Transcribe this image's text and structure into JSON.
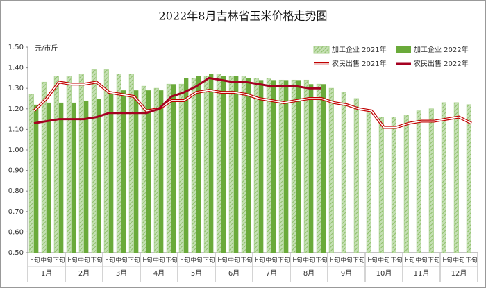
{
  "chart_data": {
    "type": "bar_line",
    "title": "2022年8月吉林省玉米价格走势图",
    "y_label": "元/市斤",
    "categories": [
      "上旬",
      "中旬",
      "下旬",
      "上旬",
      "中旬",
      "下旬",
      "上旬",
      "中旬",
      "下旬",
      "上旬",
      "中旬",
      "下旬",
      "上旬",
      "中旬",
      "下旬",
      "上旬",
      "中旬",
      "下旬",
      "上旬",
      "中旬",
      "下旬",
      "上旬",
      "中旬",
      "下旬",
      "上旬",
      "中旬",
      "下旬",
      "上旬",
      "中旬",
      "下旬",
      "上旬",
      "中旬",
      "下旬",
      "上旬",
      "中旬",
      "下旬"
    ],
    "groups": [
      "1月",
      "2月",
      "3月",
      "4月",
      "5月",
      "6月",
      "7月",
      "8月",
      "9月",
      "10月",
      "11月",
      "12月"
    ],
    "ylim": [
      0.5,
      1.5
    ],
    "yticks": [
      {
        "value": 0.5,
        "label": "0.50"
      },
      {
        "value": 0.6,
        "label": "0.60"
      },
      {
        "value": 0.7,
        "label": "0.70"
      },
      {
        "value": 0.8,
        "label": "0.80"
      },
      {
        "value": 0.9,
        "label": "0.90"
      },
      {
        "value": 1.0,
        "label": "1.00"
      },
      {
        "value": 1.1,
        "label": "1.10"
      },
      {
        "value": 1.2,
        "label": "1.20"
      },
      {
        "value": 1.3,
        "label": "1.30"
      },
      {
        "value": 1.4,
        "label": "1.40"
      },
      {
        "value": 1.5,
        "label": "1.50"
      }
    ],
    "series": [
      {
        "name": "加工企业 2021年",
        "kind": "bar",
        "hatched": true,
        "color": "#a9d18e",
        "values": [
          1.27,
          1.33,
          1.36,
          1.36,
          1.37,
          1.39,
          1.39,
          1.37,
          1.37,
          1.31,
          1.3,
          1.32,
          1.32,
          1.35,
          1.36,
          1.37,
          1.36,
          1.36,
          1.35,
          1.35,
          1.34,
          1.34,
          1.34,
          1.32,
          1.3,
          1.28,
          1.25,
          1.18,
          1.16,
          1.16,
          1.17,
          1.19,
          1.2,
          1.23,
          1.23,
          1.22
        ]
      },
      {
        "name": "加工企业 2022年",
        "kind": "bar",
        "hatched": false,
        "color": "#6aaa3a",
        "values": [
          1.22,
          1.23,
          1.23,
          1.23,
          1.24,
          1.25,
          1.28,
          1.29,
          1.29,
          1.29,
          1.29,
          1.32,
          1.35,
          1.36,
          1.37,
          1.36,
          1.36,
          1.35,
          1.34,
          1.34,
          1.34,
          1.34,
          1.32,
          1.32,
          null,
          null,
          null,
          null,
          null,
          null,
          null,
          null,
          null,
          null,
          null,
          null
        ]
      },
      {
        "name": "农民出售 2021年",
        "kind": "line",
        "double": true,
        "color": "#c00000",
        "values": [
          1.19,
          1.25,
          1.33,
          1.32,
          1.32,
          1.33,
          1.28,
          1.27,
          1.26,
          1.19,
          1.2,
          1.24,
          1.24,
          1.28,
          1.29,
          1.28,
          1.28,
          1.27,
          1.25,
          1.24,
          1.23,
          1.24,
          1.25,
          1.25,
          1.23,
          1.22,
          1.2,
          1.19,
          1.11,
          1.11,
          1.13,
          1.14,
          1.14,
          1.15,
          1.16,
          1.13
        ]
      },
      {
        "name": "农民出售 2022年",
        "kind": "line",
        "double": false,
        "color": "#a50021",
        "values": [
          1.13,
          1.14,
          1.15,
          1.15,
          1.15,
          1.16,
          1.18,
          1.18,
          1.18,
          1.18,
          1.2,
          1.26,
          1.28,
          1.31,
          1.35,
          1.34,
          1.33,
          1.33,
          1.32,
          1.31,
          1.31,
          1.31,
          1.3,
          1.3,
          null,
          null,
          null,
          null,
          null,
          null,
          null,
          null,
          null,
          null,
          null,
          null
        ]
      }
    ]
  }
}
